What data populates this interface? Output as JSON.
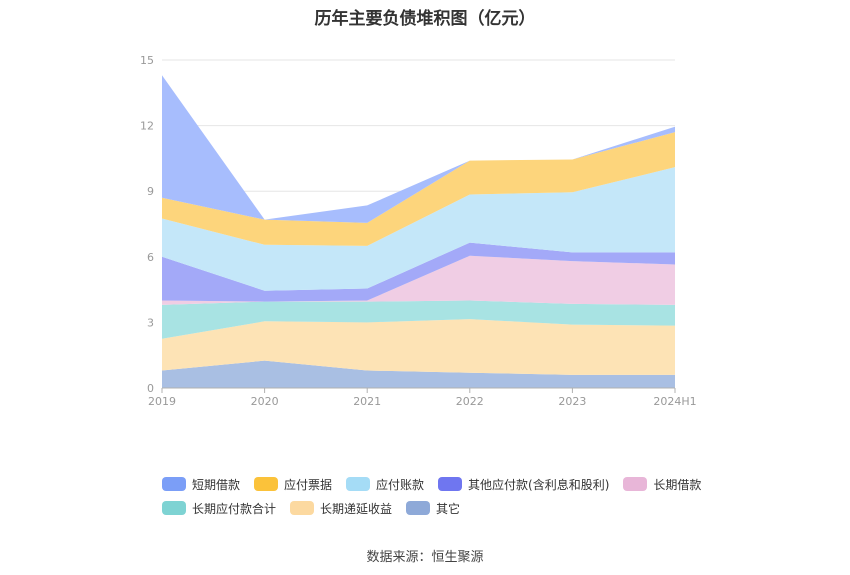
{
  "chart_data": {
    "type": "area",
    "stacked": true,
    "title": "历年主要负债堆积图（亿元）",
    "categories": [
      "2019",
      "2020",
      "2021",
      "2022",
      "2023",
      "2024H1"
    ],
    "ylim": [
      0,
      15
    ],
    "yticks": [
      0,
      3,
      6,
      9,
      12,
      15
    ],
    "grid": true,
    "legend_position": "bottom",
    "series": [
      {
        "name": "其它",
        "color": "#a9bfe3",
        "values": [
          0.8,
          1.25,
          0.8,
          0.7,
          0.6,
          0.6
        ]
      },
      {
        "name": "长期递延收益",
        "color": "#fde3b5",
        "values": [
          1.45,
          1.8,
          2.2,
          2.45,
          2.3,
          2.25
        ]
      },
      {
        "name": "长期应付款合计",
        "color": "#a8e3e3",
        "values": [
          1.55,
          0.9,
          0.95,
          0.85,
          0.95,
          0.95
        ]
      },
      {
        "name": "长期借款",
        "color": "#f0cde4",
        "values": [
          0.2,
          0.0,
          0.05,
          2.05,
          1.95,
          1.85
        ]
      },
      {
        "name": "其他应付款(含利息和股利)",
        "color": "#a3a9f8",
        "values": [
          2.0,
          0.5,
          0.55,
          0.6,
          0.4,
          0.55
        ]
      },
      {
        "name": "应付账款",
        "color": "#c4e7f9",
        "values": [
          1.75,
          2.1,
          1.95,
          2.2,
          2.75,
          3.9
        ]
      },
      {
        "name": "应付票据",
        "color": "#fdd57c",
        "values": [
          0.95,
          1.15,
          1.05,
          1.55,
          1.5,
          1.6
        ]
      },
      {
        "name": "短期借款",
        "color": "#a7bdfd",
        "values": [
          5.6,
          0.0,
          0.8,
          0.0,
          0.0,
          0.25
        ]
      }
    ]
  },
  "legend": [
    {
      "label": "短期借款",
      "color": "#7b9ef7"
    },
    {
      "label": "应付票据",
      "color": "#fbc23a"
    },
    {
      "label": "应付账款",
      "color": "#a5dcf6"
    },
    {
      "label": "其他应付款(含利息和股利)",
      "color": "#6f76f0"
    },
    {
      "label": "长期借款",
      "color": "#e8b6d8"
    },
    {
      "label": "长期应付款合计",
      "color": "#7ed3d3"
    },
    {
      "label": "长期递延收益",
      "color": "#fcd9a0"
    },
    {
      "label": "其它",
      "color": "#8ea9d8"
    }
  ],
  "source": "数据来源：恒生聚源"
}
